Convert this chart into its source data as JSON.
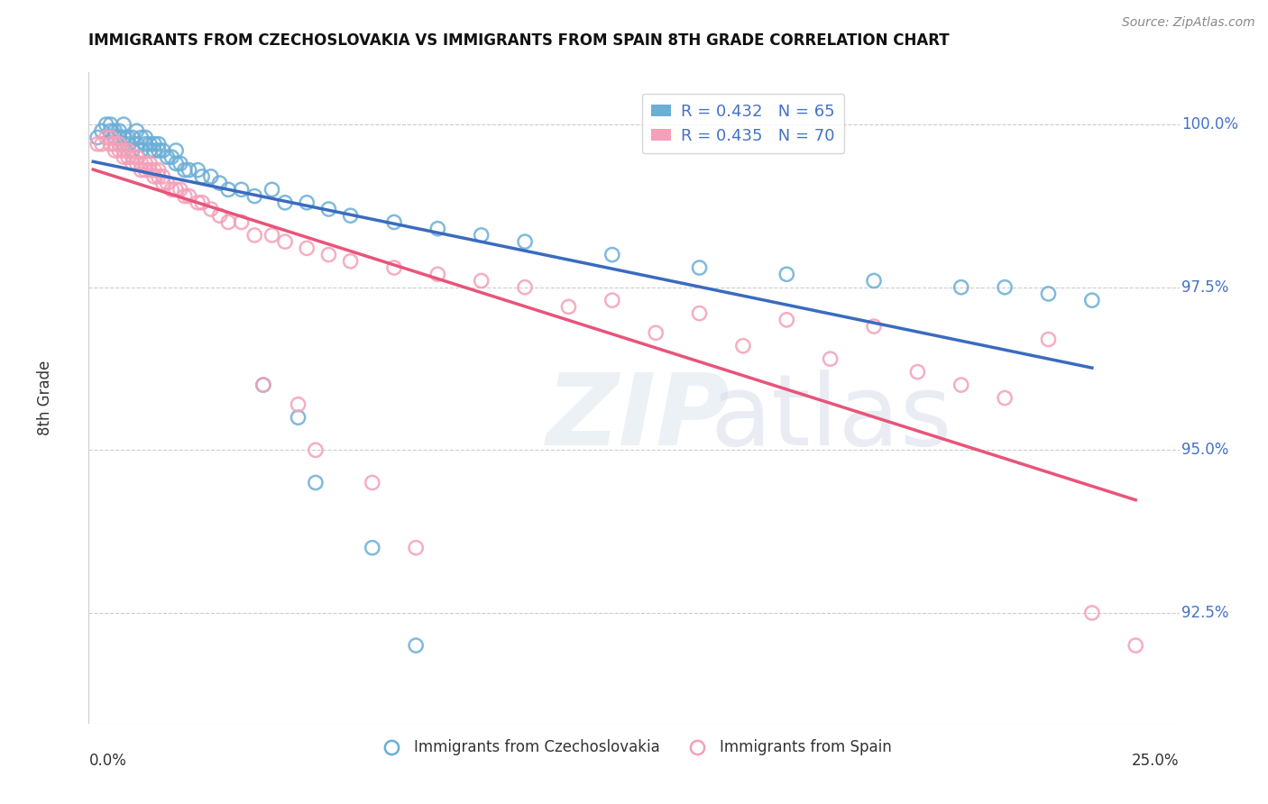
{
  "title": "IMMIGRANTS FROM CZECHOSLOVAKIA VS IMMIGRANTS FROM SPAIN 8TH GRADE CORRELATION CHART",
  "source": "Source: ZipAtlas.com",
  "ylabel": "8th Grade",
  "ytick_labels": [
    "100.0%",
    "97.5%",
    "95.0%",
    "92.5%"
  ],
  "ytick_values": [
    1.0,
    0.975,
    0.95,
    0.925
  ],
  "xlim": [
    0.0,
    0.25
  ],
  "ylim": [
    0.908,
    1.008
  ],
  "legend_blue_label": "R = 0.432   N = 65",
  "legend_pink_label": "R = 0.435   N = 70",
  "legend_xlabel_blue": "Immigrants from Czechoslovakia",
  "legend_xlabel_pink": "Immigrants from Spain",
  "blue_color": "#6baed6",
  "pink_color": "#f4a0b8",
  "blue_line_color": "#3a6bbf",
  "pink_line_color": "#e8547a",
  "blue_scatter_x": [
    0.002,
    0.003,
    0.004,
    0.005,
    0.005,
    0.006,
    0.006,
    0.007,
    0.007,
    0.008,
    0.008,
    0.008,
    0.009,
    0.009,
    0.01,
    0.01,
    0.011,
    0.011,
    0.012,
    0.012,
    0.013,
    0.013,
    0.014,
    0.014,
    0.015,
    0.015,
    0.016,
    0.016,
    0.017,
    0.018,
    0.019,
    0.02,
    0.02,
    0.021,
    0.022,
    0.023,
    0.025,
    0.026,
    0.028,
    0.03,
    0.032,
    0.035,
    0.038,
    0.042,
    0.045,
    0.05,
    0.055,
    0.06,
    0.07,
    0.08,
    0.09,
    0.1,
    0.12,
    0.14,
    0.16,
    0.18,
    0.2,
    0.21,
    0.22,
    0.23,
    0.04,
    0.048,
    0.052,
    0.065,
    0.075
  ],
  "blue_scatter_y": [
    0.998,
    0.999,
    1.0,
    0.999,
    1.0,
    0.998,
    0.999,
    0.998,
    0.999,
    0.997,
    0.998,
    1.0,
    0.997,
    0.998,
    0.996,
    0.998,
    0.997,
    0.999,
    0.996,
    0.998,
    0.997,
    0.998,
    0.996,
    0.997,
    0.996,
    0.997,
    0.996,
    0.997,
    0.996,
    0.995,
    0.995,
    0.994,
    0.996,
    0.994,
    0.993,
    0.993,
    0.993,
    0.992,
    0.992,
    0.991,
    0.99,
    0.99,
    0.989,
    0.99,
    0.988,
    0.988,
    0.987,
    0.986,
    0.985,
    0.984,
    0.983,
    0.982,
    0.98,
    0.978,
    0.977,
    0.976,
    0.975,
    0.975,
    0.974,
    0.973,
    0.96,
    0.955,
    0.945,
    0.935,
    0.92
  ],
  "pink_scatter_x": [
    0.002,
    0.003,
    0.004,
    0.005,
    0.005,
    0.006,
    0.006,
    0.007,
    0.007,
    0.008,
    0.008,
    0.009,
    0.009,
    0.01,
    0.01,
    0.011,
    0.011,
    0.012,
    0.012,
    0.013,
    0.013,
    0.014,
    0.014,
    0.015,
    0.015,
    0.016,
    0.016,
    0.017,
    0.017,
    0.018,
    0.019,
    0.02,
    0.021,
    0.022,
    0.023,
    0.025,
    0.026,
    0.028,
    0.03,
    0.032,
    0.035,
    0.038,
    0.042,
    0.045,
    0.05,
    0.055,
    0.06,
    0.07,
    0.08,
    0.09,
    0.1,
    0.12,
    0.14,
    0.16,
    0.18,
    0.22,
    0.04,
    0.048,
    0.052,
    0.065,
    0.075,
    0.11,
    0.13,
    0.15,
    0.17,
    0.19,
    0.2,
    0.21,
    0.23,
    0.24
  ],
  "pink_scatter_y": [
    0.997,
    0.997,
    0.998,
    0.997,
    0.998,
    0.996,
    0.997,
    0.996,
    0.997,
    0.995,
    0.996,
    0.995,
    0.996,
    0.994,
    0.995,
    0.994,
    0.995,
    0.993,
    0.994,
    0.993,
    0.994,
    0.993,
    0.994,
    0.992,
    0.993,
    0.992,
    0.993,
    0.991,
    0.992,
    0.991,
    0.99,
    0.99,
    0.99,
    0.989,
    0.989,
    0.988,
    0.988,
    0.987,
    0.986,
    0.985,
    0.985,
    0.983,
    0.983,
    0.982,
    0.981,
    0.98,
    0.979,
    0.978,
    0.977,
    0.976,
    0.975,
    0.973,
    0.971,
    0.97,
    0.969,
    0.967,
    0.96,
    0.957,
    0.95,
    0.945,
    0.935,
    0.972,
    0.968,
    0.966,
    0.964,
    0.962,
    0.96,
    0.958,
    0.925,
    0.92
  ]
}
